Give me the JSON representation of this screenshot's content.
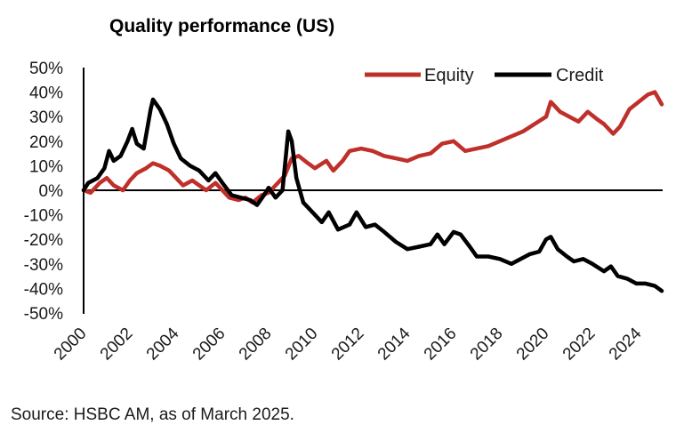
{
  "chart_data": {
    "type": "line",
    "title": "Quality performance (US)",
    "xlabel": "",
    "ylabel": "",
    "x_ticks": [
      "2000",
      "2002",
      "2004",
      "2006",
      "2008",
      "2010",
      "2012",
      "2014",
      "2016",
      "2018",
      "2020",
      "2022",
      "2024"
    ],
    "y_ticks": [
      "50%",
      "40%",
      "30%",
      "20%",
      "10%",
      "0%",
      "-10%",
      "-20%",
      "-30%",
      "-40%",
      "-50%"
    ],
    "xlim": [
      2000,
      2025.1
    ],
    "ylim": [
      -50,
      50
    ],
    "y_unit": "%",
    "grid": false,
    "legend_position": "top-right",
    "source": "Source: HSBC AM, as of March 2025.",
    "series": [
      {
        "name": "Equity",
        "color": "#c0302b",
        "x": [
          2000.0,
          2000.3,
          2000.7,
          2001.0,
          2001.3,
          2001.7,
          2002.0,
          2002.3,
          2002.7,
          2003.0,
          2003.3,
          2003.7,
          2004.0,
          2004.3,
          2004.7,
          2005.0,
          2005.3,
          2005.7,
          2006.0,
          2006.3,
          2006.7,
          2007.0,
          2007.3,
          2007.7,
          2008.0,
          2008.3,
          2008.7,
          2009.0,
          2009.3,
          2009.7,
          2010.0,
          2010.5,
          2010.8,
          2011.2,
          2011.5,
          2012.0,
          2012.5,
          2013.0,
          2013.5,
          2014.0,
          2014.5,
          2015.0,
          2015.5,
          2016.0,
          2016.5,
          2017.0,
          2017.5,
          2018.0,
          2018.5,
          2019.0,
          2019.5,
          2020.0,
          2020.2,
          2020.6,
          2021.0,
          2021.4,
          2021.8,
          2022.2,
          2022.5,
          2022.9,
          2023.2,
          2023.6,
          2024.0,
          2024.4,
          2024.7,
          2025.0
        ],
        "values": [
          0,
          -1,
          3,
          5,
          2,
          0,
          4,
          7,
          9,
          11,
          10,
          8,
          5,
          2,
          4,
          2,
          0,
          3,
          0,
          -3,
          -4,
          -3,
          -5,
          -2,
          -1,
          2,
          6,
          13,
          14,
          11,
          9,
          12,
          8,
          12,
          16,
          17,
          16,
          14,
          13,
          12,
          14,
          15,
          19,
          20,
          16,
          17,
          18,
          20,
          22,
          24,
          27,
          30,
          36,
          32,
          30,
          28,
          32,
          29,
          27,
          23,
          26,
          33,
          36,
          39,
          40,
          35
        ]
      },
      {
        "name": "Credit",
        "color": "#000000",
        "x": [
          2000.0,
          2000.2,
          2000.6,
          2000.9,
          2001.1,
          2001.3,
          2001.6,
          2001.9,
          2002.1,
          2002.3,
          2002.6,
          2002.9,
          2003.0,
          2003.3,
          2003.6,
          2003.9,
          2004.2,
          2004.6,
          2005.0,
          2005.4,
          2005.7,
          2006.0,
          2006.4,
          2006.8,
          2007.2,
          2007.5,
          2007.8,
          2008.0,
          2008.3,
          2008.6,
          2008.85,
          2009.0,
          2009.2,
          2009.5,
          2010.0,
          2010.3,
          2010.6,
          2011.0,
          2011.5,
          2011.8,
          2012.2,
          2012.6,
          2013.0,
          2013.5,
          2014.0,
          2014.5,
          2015.0,
          2015.3,
          2015.6,
          2016.0,
          2016.3,
          2016.7,
          2017.0,
          2017.5,
          2018.0,
          2018.5,
          2018.9,
          2019.3,
          2019.7,
          2020.0,
          2020.2,
          2020.5,
          2020.9,
          2021.2,
          2021.6,
          2022.0,
          2022.5,
          2022.8,
          2023.1,
          2023.5,
          2023.9,
          2024.3,
          2024.7,
          2025.0
        ],
        "values": [
          0,
          3,
          5,
          9,
          16,
          12,
          14,
          20,
          25,
          19,
          17,
          33,
          37,
          33,
          27,
          19,
          13,
          10,
          8,
          4,
          7,
          3,
          -2,
          -3,
          -4,
          -6,
          -2,
          1,
          -3,
          0,
          24,
          20,
          5,
          -5,
          -10,
          -13,
          -9,
          -16,
          -14,
          -9,
          -15,
          -14,
          -17,
          -21,
          -24,
          -23,
          -22,
          -18,
          -22,
          -17,
          -18,
          -23,
          -27,
          -27,
          -28,
          -30,
          -28,
          -26,
          -25,
          -20,
          -19,
          -24,
          -27,
          -29,
          -28,
          -30,
          -33,
          -31,
          -35,
          -36,
          -38,
          -38,
          -39,
          -41
        ]
      }
    ]
  }
}
